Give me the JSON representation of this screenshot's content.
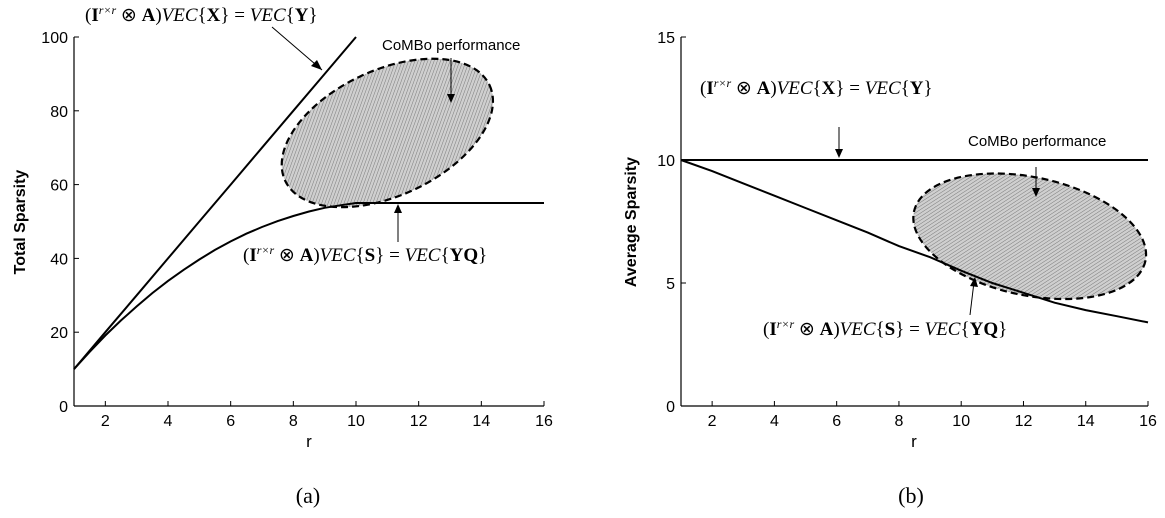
{
  "chart_data": [
    {
      "type": "line",
      "panel_label": "(a)",
      "xlabel": "r",
      "ylabel": "Total Sparsity",
      "xlim": [
        1,
        16
      ],
      "ylim": [
        0,
        100
      ],
      "x_ticks": [
        2,
        4,
        6,
        8,
        10,
        12,
        14,
        16
      ],
      "y_ticks": [
        0,
        20,
        40,
        60,
        80,
        100
      ],
      "grid": false,
      "series": [
        {
          "x": [
            1,
            2,
            3,
            4,
            5,
            6,
            7,
            8,
            9,
            10
          ],
          "y": [
            10,
            20,
            30,
            40,
            50,
            60,
            70,
            80,
            90,
            100
          ]
        },
        {
          "x": [
            1,
            1.5,
            2,
            2.5,
            3,
            3.5,
            4,
            4.5,
            5,
            5.5,
            6,
            6.5,
            7,
            7.5,
            8,
            8.5,
            9,
            9.5,
            10,
            11,
            12,
            13,
            14,
            15,
            16
          ],
          "y": [
            10,
            14.7,
            19.1,
            23.2,
            27.0,
            30.6,
            33.9,
            36.9,
            39.7,
            42.3,
            44.6,
            46.7,
            48.5,
            50.1,
            51.5,
            52.7,
            53.7,
            54.4,
            55,
            55,
            55,
            55,
            55,
            55,
            55
          ]
        }
      ],
      "region": {
        "label": "CoMBo performance",
        "center": [
          11,
          74
        ],
        "radius": [
          3.6,
          17
        ],
        "angle": -25
      },
      "annotations": [
        {
          "text": "(I^{r×r} ⊗ A)VEC{X} = VEC{Y}",
          "arrow_to": [
            8.8,
            90
          ]
        },
        {
          "text": "(I^{r×r} ⊗ A)VEC{S} = VEC{YQ}",
          "arrow_to": [
            11.3,
            55
          ]
        },
        {
          "text": "CoMBo performance",
          "arrow_to": [
            13,
            82
          ]
        }
      ]
    },
    {
      "type": "line",
      "panel_label": "(b)",
      "xlabel": "r",
      "ylabel": "Average Sparsity",
      "xlim": [
        1,
        16
      ],
      "ylim": [
        0,
        15
      ],
      "x_ticks": [
        2,
        4,
        6,
        8,
        10,
        12,
        14,
        16
      ],
      "y_ticks": [
        0,
        5,
        10,
        15
      ],
      "grid": false,
      "series": [
        {
          "x": [
            1,
            16
          ],
          "y": [
            10,
            10
          ]
        },
        {
          "x": [
            1,
            2,
            3,
            4,
            5,
            6,
            7,
            8,
            9,
            10,
            11,
            12,
            13,
            14,
            15,
            16
          ],
          "y": [
            10,
            9.55,
            9.05,
            8.55,
            8.05,
            7.55,
            7.05,
            6.5,
            6.05,
            5.5,
            5.0,
            4.6,
            4.2,
            3.9,
            3.65,
            3.4
          ]
        }
      ],
      "region": {
        "label": "CoMBo performance",
        "center": [
          12.2,
          6.9
        ],
        "radius": [
          3.8,
          2.4
        ],
        "angle": 12
      },
      "annotations": [
        {
          "text": "(I^{r×r} ⊗ A)VEC{X} = VEC{Y}",
          "arrow_to": [
            6,
            10
          ]
        },
        {
          "text": "(I^{r×r} ⊗ A)VEC{S} = VEC{YQ}",
          "arrow_to": [
            10.4,
            5.3
          ]
        },
        {
          "text": "CoMBo performance",
          "arrow_to": [
            12.5,
            8.5
          ]
        }
      ]
    }
  ]
}
